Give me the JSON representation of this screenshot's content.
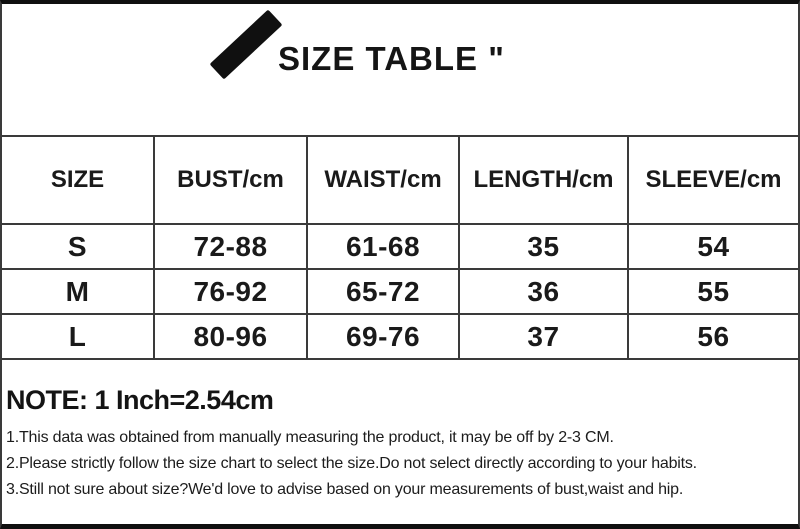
{
  "title": "SIZE TABLE \"",
  "icon": "brush-stroke-icon",
  "chart_data": {
    "type": "table",
    "title": "SIZE TABLE \"",
    "columns": [
      "SIZE",
      "BUST/cm",
      "WAIST/cm",
      "LENGTH/cm",
      "SLEEVE/cm"
    ],
    "rows": [
      [
        "S",
        "72-88",
        "61-68",
        "35",
        "54"
      ],
      [
        "M",
        "76-92",
        "65-72",
        "36",
        "55"
      ],
      [
        "L",
        "80-96",
        "69-76",
        "37",
        "56"
      ]
    ],
    "units": "cm",
    "layout": "bordered grid, header row taller, all text bold centered"
  },
  "note": {
    "heading": "NOTE: 1 Inch=2.54cm",
    "lines": [
      "1.This data was obtained from manually measuring the product, it may be off by 2-3 CM.",
      "2.Please strictly follow the size chart to select the size.Do not select directly according to your habits.",
      "3.Still not sure about size?We'd love to advise based on your measurements of bust,waist and hip."
    ]
  },
  "colors": {
    "text": "#1a1a1a",
    "grid_line": "#3a3a3a",
    "outer_bar": "#0f0f0f",
    "background": "#ffffff"
  }
}
